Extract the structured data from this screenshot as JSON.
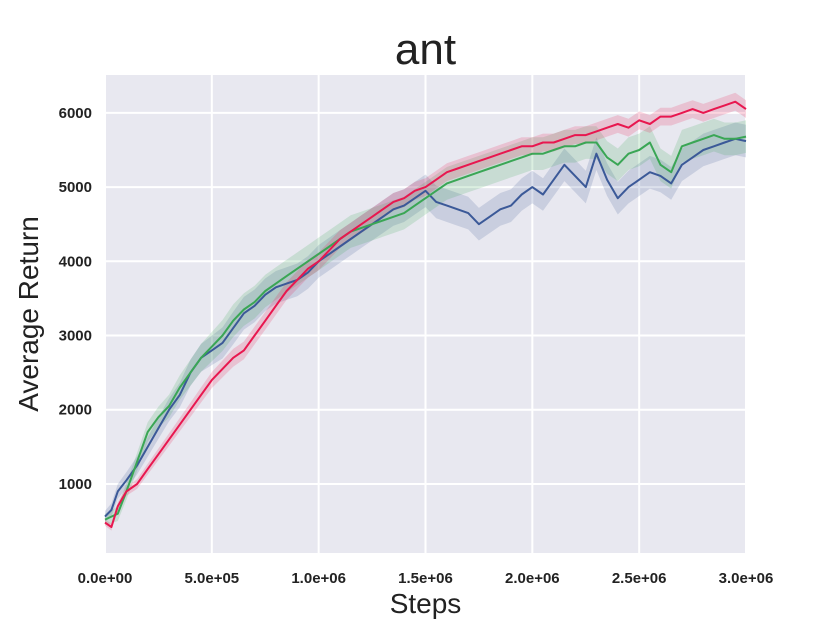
{
  "chart_data": {
    "type": "line",
    "title": "ant",
    "xlabel": "Steps",
    "ylabel": "Average Return",
    "xlim": [
      0,
      3000000
    ],
    "ylim": [
      70,
      6510
    ],
    "grid": true,
    "background": "#e8e8f0",
    "grid_color": "#ffffff",
    "x_ticks": [
      {
        "value": 0,
        "label": "0.0e+00"
      },
      {
        "value": 500000,
        "label": "5.0e+05"
      },
      {
        "value": 1000000,
        "label": "1.0e+06"
      },
      {
        "value": 1500000,
        "label": "1.5e+06"
      },
      {
        "value": 2000000,
        "label": "2.0e+06"
      },
      {
        "value": 2500000,
        "label": "2.5e+06"
      },
      {
        "value": 3000000,
        "label": "3.0e+06"
      }
    ],
    "y_ticks": [
      {
        "value": 1000,
        "label": "1000"
      },
      {
        "value": 2000,
        "label": "2000"
      },
      {
        "value": 3000,
        "label": "3000"
      },
      {
        "value": 4000,
        "label": "4000"
      },
      {
        "value": 5000,
        "label": "5000"
      },
      {
        "value": 6000,
        "label": "6000"
      }
    ],
    "series": [
      {
        "color": "#3b5998",
        "band_spread": 220,
        "x": [
          0,
          30000,
          60000,
          100000,
          150000,
          200000,
          250000,
          300000,
          350000,
          400000,
          450000,
          500000,
          550000,
          600000,
          650000,
          700000,
          750000,
          800000,
          850000,
          900000,
          950000,
          1000000,
          1050000,
          1100000,
          1150000,
          1200000,
          1250000,
          1300000,
          1350000,
          1400000,
          1450000,
          1500000,
          1550000,
          1600000,
          1650000,
          1700000,
          1750000,
          1800000,
          1850000,
          1900000,
          1950000,
          2000000,
          2050000,
          2100000,
          2150000,
          2200000,
          2250000,
          2300000,
          2350000,
          2400000,
          2450000,
          2500000,
          2550000,
          2600000,
          2650000,
          2700000,
          2750000,
          2800000,
          2850000,
          2900000,
          2950000,
          3000000
        ],
        "y": [
          560,
          650,
          900,
          1050,
          1250,
          1500,
          1750,
          2000,
          2200,
          2500,
          2700,
          2800,
          2900,
          3100,
          3300,
          3400,
          3550,
          3650,
          3700,
          3750,
          3850,
          4000,
          4100,
          4200,
          4300,
          4400,
          4500,
          4600,
          4700,
          4750,
          4850,
          4950,
          4800,
          4750,
          4700,
          4650,
          4500,
          4600,
          4700,
          4750,
          4900,
          5000,
          4900,
          5100,
          5300,
          5150,
          5000,
          5450,
          5100,
          4850,
          5000,
          5100,
          5200,
          5150,
          5050,
          5300,
          5400,
          5500,
          5550,
          5600,
          5650,
          5620
        ]
      },
      {
        "color": "#3aa655",
        "band_spread": 220,
        "x": [
          0,
          30000,
          60000,
          100000,
          150000,
          200000,
          250000,
          300000,
          350000,
          400000,
          450000,
          500000,
          550000,
          600000,
          650000,
          700000,
          750000,
          800000,
          850000,
          900000,
          950000,
          1000000,
          1050000,
          1100000,
          1150000,
          1200000,
          1250000,
          1300000,
          1350000,
          1400000,
          1450000,
          1500000,
          1550000,
          1600000,
          1650000,
          1700000,
          1750000,
          1800000,
          1850000,
          1900000,
          1950000,
          2000000,
          2050000,
          2100000,
          2150000,
          2200000,
          2250000,
          2300000,
          2350000,
          2400000,
          2450000,
          2500000,
          2550000,
          2600000,
          2650000,
          2700000,
          2750000,
          2800000,
          2850000,
          2900000,
          2950000,
          3000000
        ],
        "y": [
          520,
          560,
          600,
          900,
          1300,
          1700,
          1900,
          2050,
          2300,
          2500,
          2700,
          2850,
          3000,
          3200,
          3350,
          3450,
          3600,
          3700,
          3800,
          3900,
          4000,
          4100,
          4200,
          4300,
          4400,
          4450,
          4500,
          4550,
          4600,
          4650,
          4750,
          4850,
          4950,
          5050,
          5100,
          5150,
          5200,
          5250,
          5300,
          5350,
          5400,
          5450,
          5450,
          5500,
          5550,
          5550,
          5600,
          5600,
          5400,
          5300,
          5450,
          5500,
          5600,
          5300,
          5200,
          5550,
          5600,
          5650,
          5700,
          5650,
          5650,
          5680
        ]
      },
      {
        "color": "#e8174f",
        "band_spread": 120,
        "x": [
          0,
          30000,
          60000,
          100000,
          150000,
          200000,
          250000,
          300000,
          350000,
          400000,
          450000,
          500000,
          550000,
          600000,
          650000,
          700000,
          750000,
          800000,
          850000,
          900000,
          950000,
          1000000,
          1050000,
          1100000,
          1150000,
          1200000,
          1250000,
          1300000,
          1350000,
          1400000,
          1450000,
          1500000,
          1550000,
          1600000,
          1650000,
          1700000,
          1750000,
          1800000,
          1850000,
          1900000,
          1950000,
          2000000,
          2050000,
          2100000,
          2150000,
          2200000,
          2250000,
          2300000,
          2350000,
          2400000,
          2450000,
          2500000,
          2550000,
          2600000,
          2650000,
          2700000,
          2750000,
          2800000,
          2850000,
          2900000,
          2950000,
          3000000
        ],
        "y": [
          480,
          420,
          700,
          900,
          1000,
          1200,
          1400,
          1600,
          1800,
          2000,
          2200,
          2400,
          2550,
          2700,
          2800,
          3000,
          3200,
          3400,
          3600,
          3750,
          3900,
          4000,
          4150,
          4300,
          4400,
          4500,
          4600,
          4700,
          4800,
          4850,
          4950,
          5000,
          5100,
          5200,
          5250,
          5300,
          5350,
          5400,
          5450,
          5500,
          5550,
          5550,
          5600,
          5600,
          5650,
          5700,
          5700,
          5750,
          5800,
          5850,
          5800,
          5900,
          5850,
          5950,
          5950,
          6000,
          6050,
          6000,
          6050,
          6100,
          6150,
          6050
        ]
      }
    ]
  }
}
